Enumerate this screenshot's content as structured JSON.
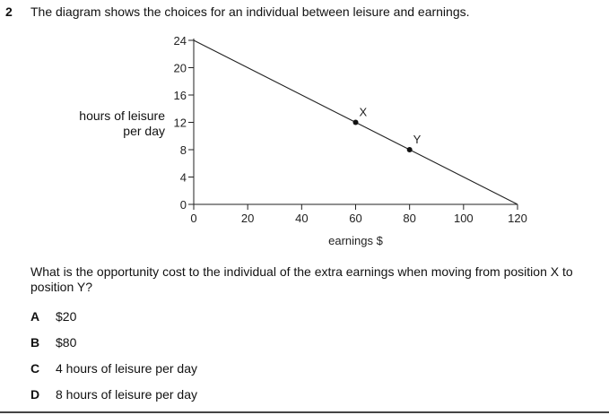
{
  "question": {
    "number": "2",
    "text": "The diagram shows the choices for an individual between leisure and earnings.",
    "prompt": "What is the opportunity cost to the individual of the extra earnings when moving from position X to position Y?"
  },
  "chart_data": {
    "type": "line",
    "ylabel_line1": "hours of leisure",
    "ylabel_line2": "per day",
    "xlabel": "earnings $",
    "xlim": [
      0,
      120
    ],
    "ylim": [
      0,
      24
    ],
    "x_ticks": [
      "0",
      "20",
      "40",
      "60",
      "80",
      "100",
      "120"
    ],
    "y_ticks": [
      "0",
      "4",
      "8",
      "12",
      "16",
      "20",
      "24"
    ],
    "line": {
      "x": [
        0,
        120
      ],
      "y": [
        24,
        0
      ]
    },
    "points": [
      {
        "label": "X",
        "x": 60,
        "y": 12
      },
      {
        "label": "Y",
        "x": 80,
        "y": 8
      }
    ],
    "grid": false
  },
  "options": [
    {
      "letter": "A",
      "text": "$20"
    },
    {
      "letter": "B",
      "text": "$80"
    },
    {
      "letter": "C",
      "text": "4 hours of leisure per day"
    },
    {
      "letter": "D",
      "text": "8 hours of leisure per day"
    }
  ]
}
